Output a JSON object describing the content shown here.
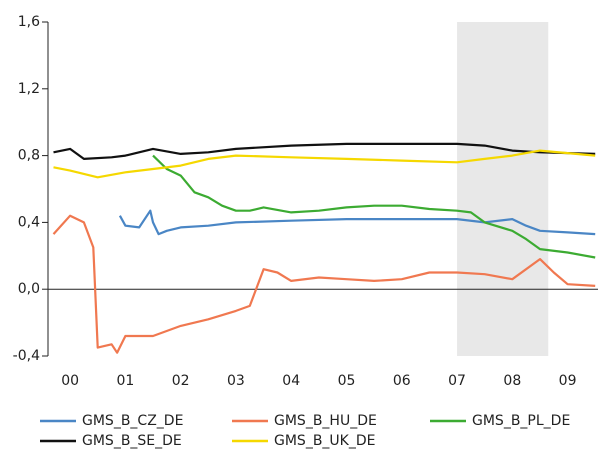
{
  "chart_data": {
    "type": "line",
    "xlim": [
      1999.6,
      2009.55
    ],
    "ylim": [
      -0.4,
      1.6
    ],
    "yticks": [
      {
        "value": -0.4,
        "label": "-0,4"
      },
      {
        "value": 0,
        "label": "0,0"
      },
      {
        "value": 0.4,
        "label": "0,4"
      },
      {
        "value": 0.8,
        "label": "0,8"
      },
      {
        "value": 1.2,
        "label": "1,2"
      },
      {
        "value": 1.6,
        "label": "1,6"
      }
    ],
    "xticks": [
      {
        "value": 2000,
        "label": "00"
      },
      {
        "value": 2001,
        "label": "01"
      },
      {
        "value": 2002,
        "label": "02"
      },
      {
        "value": 2003,
        "label": "03"
      },
      {
        "value": 2004,
        "label": "04"
      },
      {
        "value": 2005,
        "label": "05"
      },
      {
        "value": 2006,
        "label": "06"
      },
      {
        "value": 2007,
        "label": "07"
      },
      {
        "value": 2008,
        "label": "08"
      },
      {
        "value": 2009,
        "label": "09"
      }
    ],
    "shaded_region": [
      2007,
      2008.65
    ],
    "series": [
      {
        "name": "GMS_B_CZ_DE",
        "color": "#4a86c5",
        "x": [
          2000.9,
          2001.0,
          2001.25,
          2001.45,
          2001.5,
          2001.6,
          2001.75,
          2002,
          2002.5,
          2003,
          2004,
          2005,
          2006,
          2007,
          2007.5,
          2008,
          2008.25,
          2008.5,
          2009,
          2009.5
        ],
        "values": [
          0.44,
          0.38,
          0.37,
          0.47,
          0.4,
          0.33,
          0.35,
          0.37,
          0.38,
          0.4,
          0.41,
          0.42,
          0.42,
          0.42,
          0.4,
          0.42,
          0.38,
          0.35,
          0.34,
          0.33
        ]
      },
      {
        "name": "GMS_B_HU_DE",
        "color": "#f07850",
        "x": [
          1999.7,
          2000.0,
          2000.25,
          2000.42,
          2000.5,
          2000.75,
          2000.85,
          2001,
          2001.5,
          2002,
          2002.5,
          2003,
          2003.25,
          2003.5,
          2003.75,
          2004,
          2004.5,
          2005,
          2005.5,
          2006,
          2006.5,
          2007,
          2007.5,
          2008,
          2008.5,
          2008.75,
          2009,
          2009.5
        ],
        "values": [
          0.33,
          0.44,
          0.4,
          0.25,
          -0.35,
          -0.33,
          -0.38,
          -0.28,
          -0.28,
          -0.22,
          -0.18,
          -0.13,
          -0.1,
          0.12,
          0.1,
          0.05,
          0.07,
          0.06,
          0.05,
          0.06,
          0.1,
          0.1,
          0.09,
          0.06,
          0.18,
          0.1,
          0.03,
          0.02
        ]
      },
      {
        "name": "GMS_B_PL_DE",
        "color": "#3cab32",
        "x": [
          2001.5,
          2001.75,
          2002,
          2002.25,
          2002.5,
          2002.75,
          2003,
          2003.25,
          2003.5,
          2004,
          2004.5,
          2005,
          2005.5,
          2006,
          2006.5,
          2007,
          2007.25,
          2007.5,
          2008,
          2008.25,
          2008.5,
          2009,
          2009.5
        ],
        "values": [
          0.8,
          0.72,
          0.68,
          0.58,
          0.55,
          0.5,
          0.47,
          0.47,
          0.49,
          0.46,
          0.47,
          0.49,
          0.5,
          0.5,
          0.48,
          0.47,
          0.46,
          0.4,
          0.35,
          0.3,
          0.24,
          0.22,
          0.19
        ]
      },
      {
        "name": "GMS_B_SE_DE",
        "color": "#111111",
        "x": [
          1999.7,
          2000.0,
          2000.25,
          2000.75,
          2001.0,
          2001.5,
          2002,
          2002.5,
          2003,
          2004,
          2005,
          2006,
          2007,
          2007.5,
          2008,
          2008.5,
          2009.5
        ],
        "values": [
          0.82,
          0.84,
          0.78,
          0.79,
          0.8,
          0.84,
          0.81,
          0.82,
          0.84,
          0.86,
          0.87,
          0.87,
          0.87,
          0.86,
          0.83,
          0.82,
          0.81
        ]
      },
      {
        "name": "GMS_B_UK_DE",
        "color": "#f5d800",
        "x": [
          1999.7,
          2000.0,
          2000.5,
          2001.0,
          2001.5,
          2002,
          2002.5,
          2003,
          2004,
          2005,
          2006,
          2007,
          2007.5,
          2008,
          2008.5,
          2009.5
        ],
        "values": [
          0.73,
          0.71,
          0.67,
          0.7,
          0.72,
          0.74,
          0.78,
          0.8,
          0.79,
          0.78,
          0.77,
          0.76,
          0.78,
          0.8,
          0.83,
          0.8
        ]
      }
    ]
  }
}
